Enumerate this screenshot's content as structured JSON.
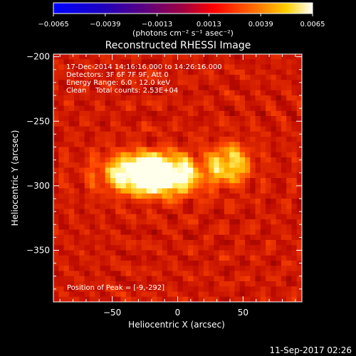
{
  "chart_data": {
    "type": "heatmap",
    "title": "Reconstructed RHESSI Image",
    "xlabel": "Heliocentric X (arcsec)",
    "ylabel": "Heliocentric Y (arcsec)",
    "xlim": [
      -95,
      95
    ],
    "ylim": [
      -390,
      -198
    ],
    "xticks": [
      -50,
      0,
      50
    ],
    "yticks": [
      -200,
      -250,
      -300,
      -350
    ],
    "colorbar": {
      "range": [
        -0.0065,
        0.0065
      ],
      "tick_values": [
        -0.0065,
        -0.0039,
        -0.0013,
        0.0013,
        0.0039,
        0.0065
      ],
      "tick_labels": [
        "−0.0065",
        "−0.0039",
        "−0.0013",
        "0.0013",
        "0.0039",
        "0.0065"
      ],
      "unit_label": "(photons cm⁻² s⁻¹ asec⁻²)"
    },
    "colors": [
      "#0000ff",
      "#ff0000",
      "#ffff00",
      "#ffffff"
    ],
    "sources": [
      {
        "x": -9,
        "y": -292,
        "relative_intensity": 1.0
      },
      {
        "x": -30,
        "y": -290,
        "relative_intensity": 0.9
      },
      {
        "x": 40,
        "y": -283,
        "relative_intensity": 0.8
      }
    ],
    "annotations": {
      "time": "17-Dec-2014 14:16:16.000 to 14:26:16.000",
      "detectors": "Detectors: 3F 6F 7F 9F, Att 0",
      "energy": "Energy Range: 6.0 - 12.0 keV",
      "clean": "Clean    Total counts: 2.53E+04",
      "peak": "Position of Peak = [-9,-292]"
    }
  },
  "footer": {
    "timestamp": "11-Sep-2017 02:26"
  }
}
